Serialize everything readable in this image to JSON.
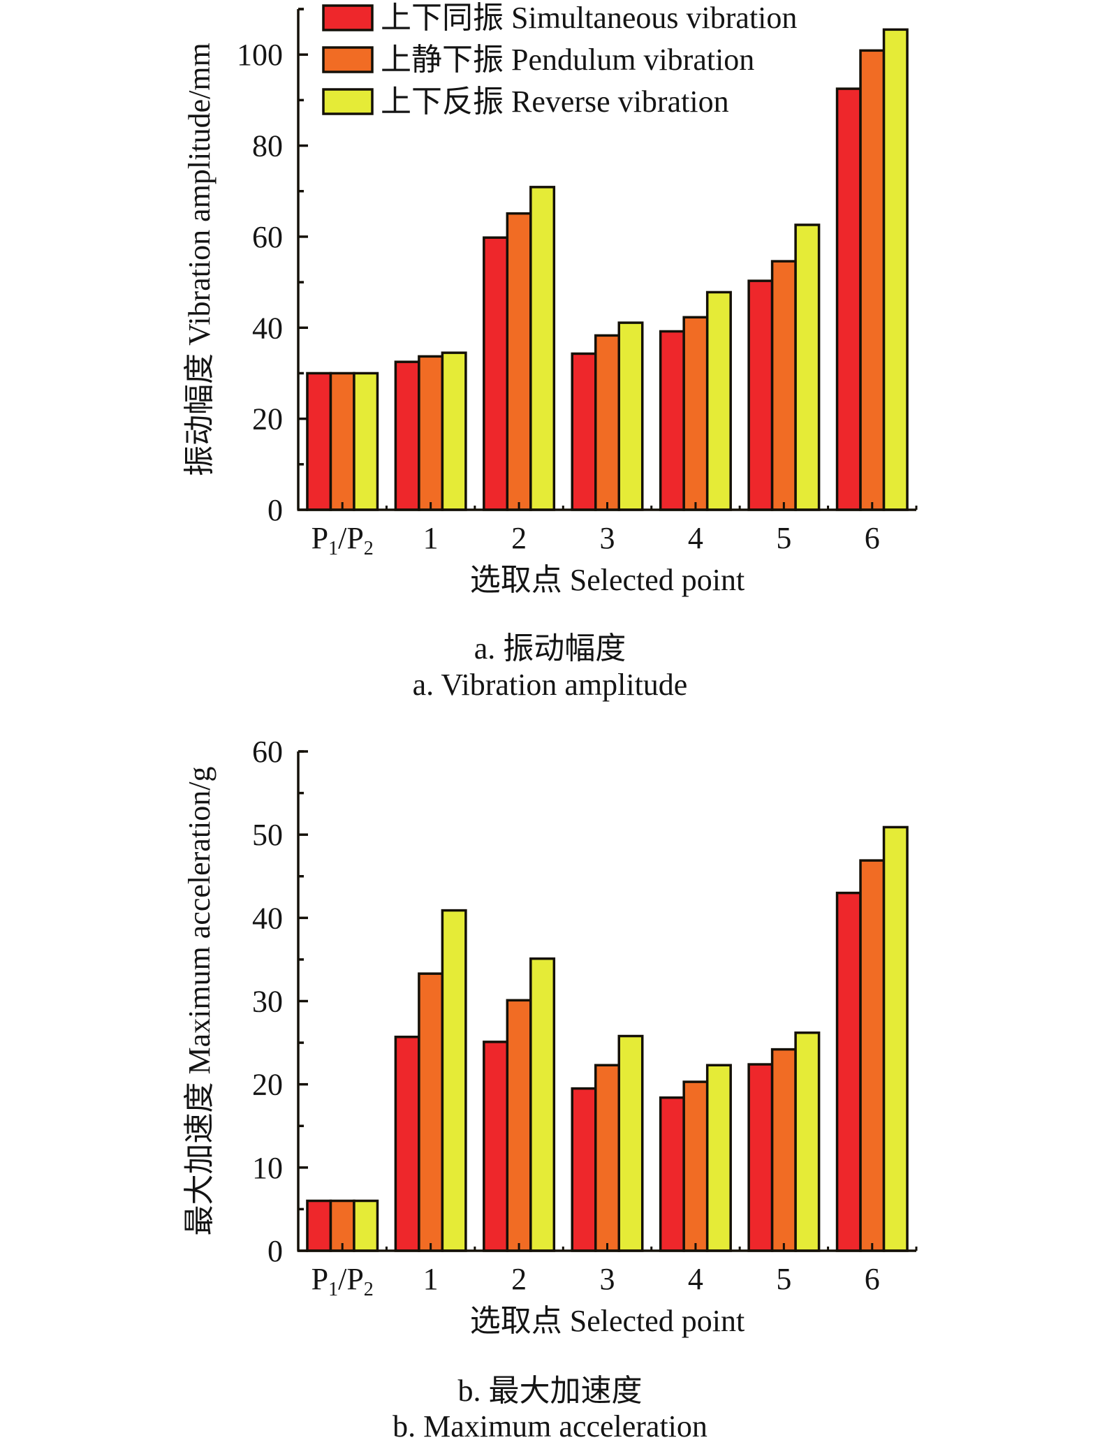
{
  "chart_data": [
    {
      "id": "a",
      "type": "bar",
      "title": "",
      "caption_cn": "a. 振动幅度",
      "caption_en": "a. Vibration amplitude",
      "xlabel": "选取点 Selected point",
      "ylabel": "振动幅度 Vibration amplitude/mm",
      "categories": [
        "P1/P2",
        "1",
        "2",
        "3",
        "4",
        "5",
        "6"
      ],
      "ylim": [
        0,
        110
      ],
      "yticks": [
        0,
        20,
        40,
        60,
        80,
        100
      ],
      "minor_tick_step": 10,
      "grid": false,
      "legend": {
        "placement": "top-left"
      },
      "series": [
        {
          "name": "上下同振 Simultaneous vibration",
          "color": "#EE272B",
          "values": [
            30,
            32.5,
            59.8,
            34.3,
            39.2,
            50.3,
            92.5
          ]
        },
        {
          "name": "上静下振 Pendulum vibration",
          "color": "#F16C24",
          "values": [
            30,
            33.7,
            65.1,
            38.3,
            42.3,
            54.6,
            100.9
          ]
        },
        {
          "name": "上下反振 Reverse vibration",
          "color": "#E5EB37",
          "values": [
            30,
            34.5,
            70.9,
            41.1,
            47.8,
            62.6,
            105.5
          ]
        }
      ]
    },
    {
      "id": "b",
      "type": "bar",
      "title": "",
      "caption_cn": "b. 最大加速度",
      "caption_en": "b. Maximum acceleration",
      "xlabel": "选取点 Selected point",
      "ylabel": "最大加速度 Maximum acceleration/g",
      "categories": [
        "P1/P2",
        "1",
        "2",
        "3",
        "4",
        "5",
        "6"
      ],
      "ylim": [
        0,
        60
      ],
      "yticks": [
        0,
        10,
        20,
        30,
        40,
        50,
        60
      ],
      "minor_tick_step": 5,
      "grid": false,
      "legend": {
        "placement": "none"
      },
      "series": [
        {
          "name": "上下同振 Simultaneous vibration",
          "color": "#EE272B",
          "values": [
            6.0,
            25.7,
            25.1,
            19.5,
            18.4,
            22.4,
            43.0
          ]
        },
        {
          "name": "上静下振 Pendulum vibration",
          "color": "#F16C24",
          "values": [
            6.0,
            33.3,
            30.1,
            22.3,
            20.3,
            24.2,
            46.9
          ]
        },
        {
          "name": "上下反振 Reverse vibration",
          "color": "#E5EB37",
          "values": [
            6.0,
            40.9,
            35.1,
            25.8,
            22.3,
            26.2,
            50.9
          ]
        }
      ]
    }
  ],
  "captions": {
    "a_cn": "a. 振动幅度",
    "a_en": "a. Vibration amplitude",
    "b_cn": "b. 最大加速度",
    "b_en": "b. Maximum acceleration"
  },
  "colors": {
    "outline": "#141008",
    "text": "#141414"
  }
}
